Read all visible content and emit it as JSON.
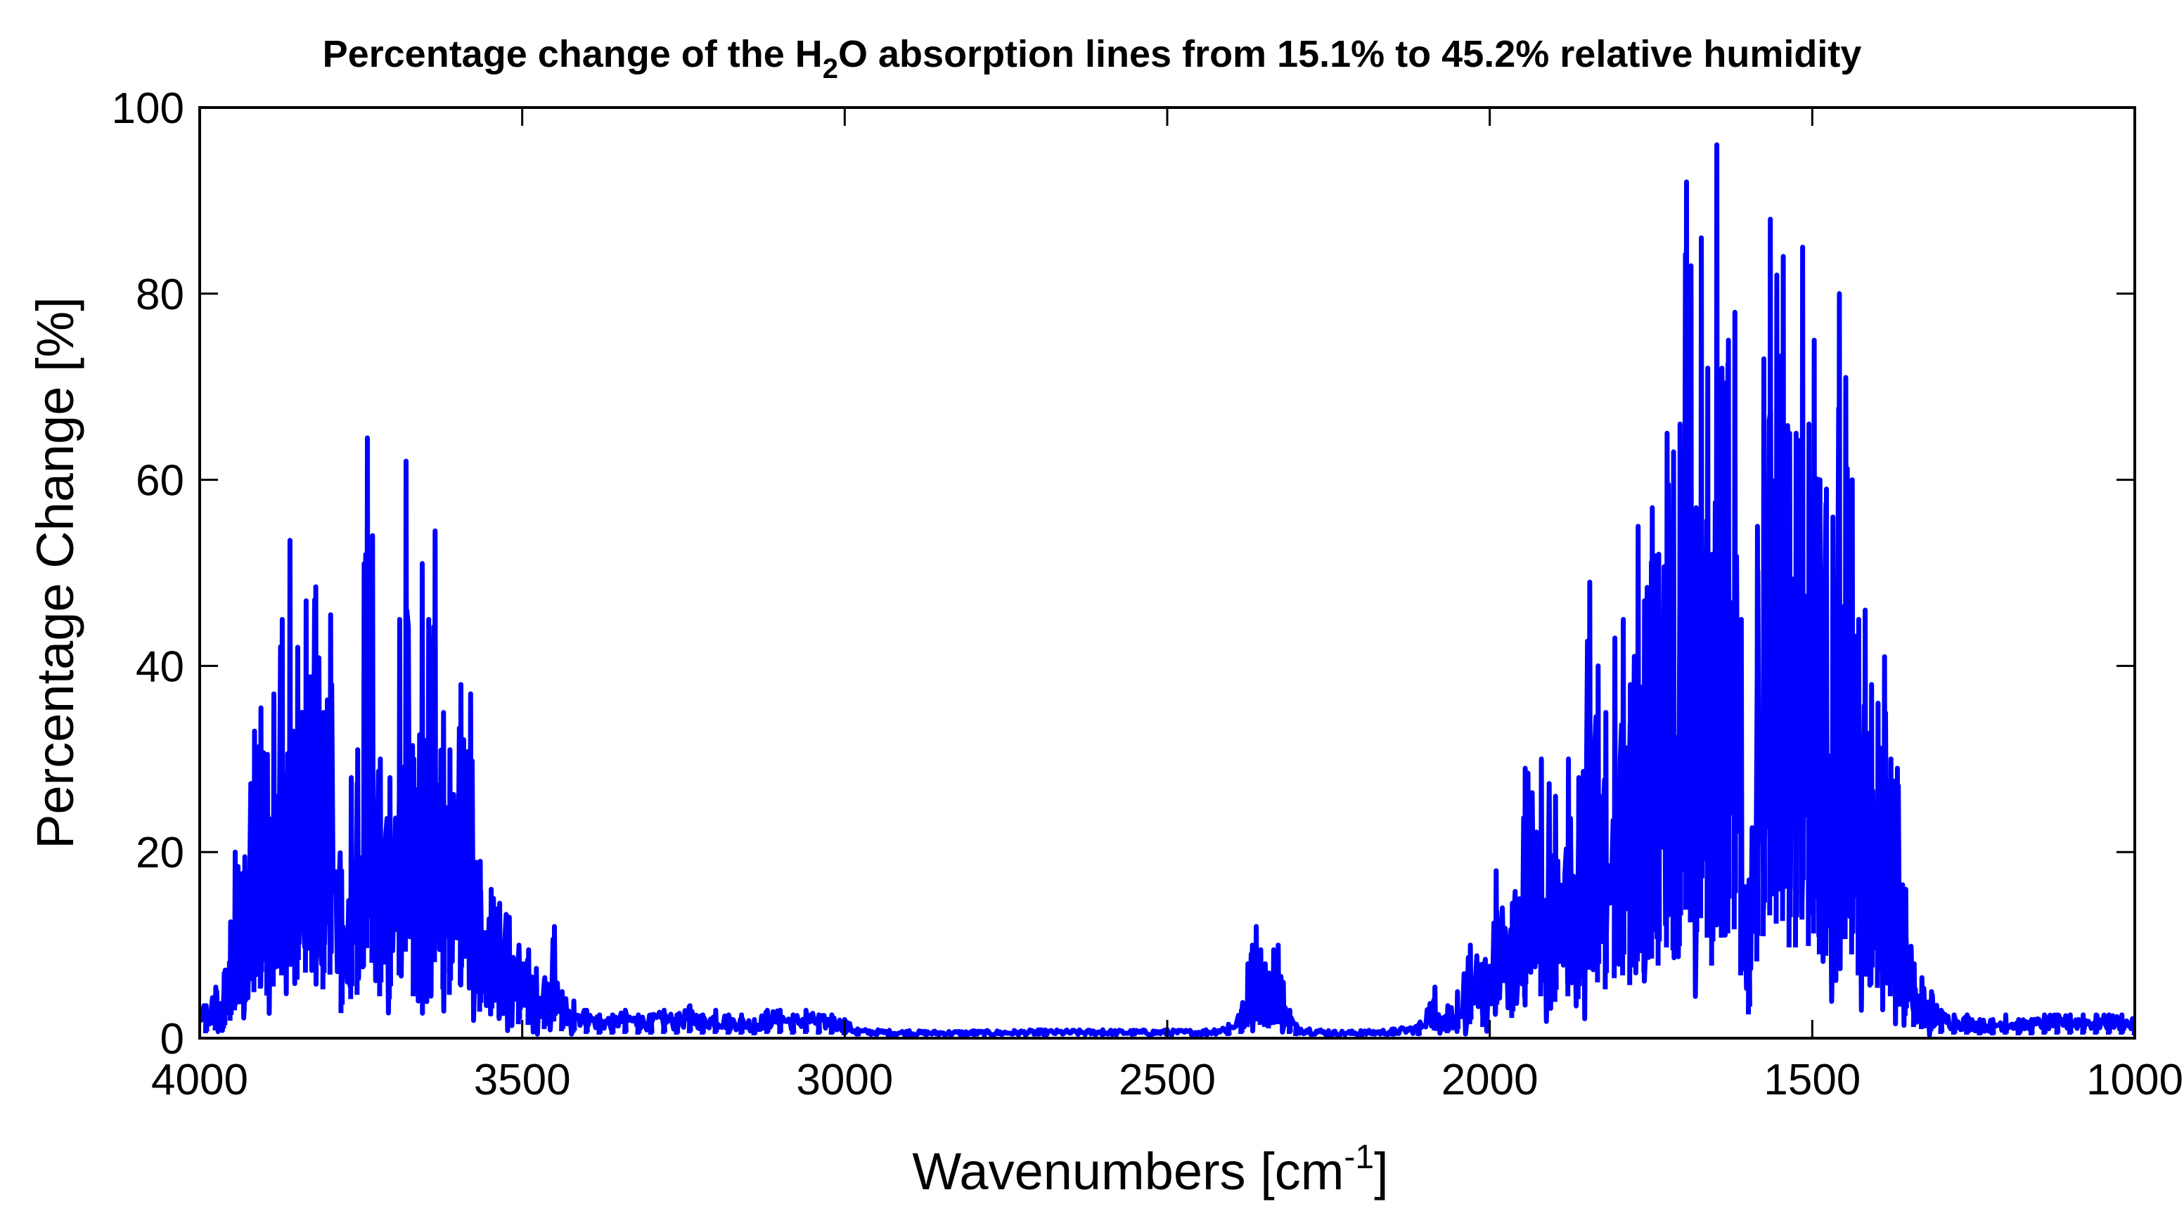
{
  "chart_data": {
    "type": "line",
    "title": {
      "before": "Percentage change of the H",
      "subscript": "2",
      "after": "O absorption lines from 15.1% to 45.2% relative humidity"
    },
    "xlabel": {
      "base": "Wavenumbers [cm",
      "superscript": "-1",
      "close": "]"
    },
    "ylabel": "Percentage Change [%]",
    "xlim": [
      4000,
      1000
    ],
    "ylim": [
      0,
      100
    ],
    "x_reversed": true,
    "xticks": [
      4000,
      3500,
      3000,
      2500,
      2000,
      1500,
      1000
    ],
    "yticks": [
      0,
      20,
      40,
      60,
      80,
      100
    ],
    "grid": false,
    "series": [
      {
        "name": "Percentage change",
        "color": "#0000ff",
        "peaks": [
          [
            3990,
            3.5
          ],
          [
            3975,
            5.5
          ],
          [
            3962,
            7.0
          ],
          [
            3952,
            12.5
          ],
          [
            3945,
            20.0
          ],
          [
            3930,
            19.5
          ],
          [
            3915,
            33.0
          ],
          [
            3905,
            35.5
          ],
          [
            3895,
            30.5
          ],
          [
            3885,
            37.0
          ],
          [
            3872,
            45.0
          ],
          [
            3860,
            53.5
          ],
          [
            3848,
            42.0
          ],
          [
            3835,
            47.0
          ],
          [
            3820,
            48.5
          ],
          [
            3808,
            35.0
          ],
          [
            3797,
            45.5
          ],
          [
            3780,
            18.0
          ],
          [
            3765,
            28.0
          ],
          [
            3755,
            31.0
          ],
          [
            3745,
            51.0
          ],
          [
            3740,
            64.5
          ],
          [
            3732,
            54.0
          ],
          [
            3720,
            30.0
          ],
          [
            3705,
            28.0
          ],
          [
            3690,
            45.0
          ],
          [
            3680,
            62.0
          ],
          [
            3668,
            30.0
          ],
          [
            3655,
            51.0
          ],
          [
            3645,
            45.0
          ],
          [
            3635,
            54.5
          ],
          [
            3622,
            35.0
          ],
          [
            3612,
            31.0
          ],
          [
            3595,
            38.0
          ],
          [
            3580,
            37.0
          ],
          [
            3565,
            19.0
          ],
          [
            3548,
            16.0
          ],
          [
            3535,
            14.5
          ],
          [
            3520,
            13.0
          ],
          [
            3505,
            10.0
          ],
          [
            3490,
            9.5
          ],
          [
            3478,
            7.5
          ],
          [
            3465,
            6.5
          ],
          [
            3450,
            12.0
          ],
          [
            3438,
            5.0
          ],
          [
            3420,
            4.0
          ],
          [
            3400,
            3.0
          ],
          [
            3380,
            2.5
          ],
          [
            3360,
            2.5
          ],
          [
            3340,
            3.0
          ],
          [
            3320,
            2.5
          ],
          [
            3300,
            2.5
          ],
          [
            3280,
            3.0
          ],
          [
            3260,
            2.5
          ],
          [
            3240,
            3.5
          ],
          [
            3220,
            2.5
          ],
          [
            3200,
            3.0
          ],
          [
            3180,
            2.5
          ],
          [
            3160,
            2.5
          ],
          [
            3140,
            2.0
          ],
          [
            3120,
            3.0
          ],
          [
            3100,
            3.0
          ],
          [
            3080,
            2.5
          ],
          [
            3060,
            3.0
          ],
          [
            3040,
            2.5
          ],
          [
            3020,
            2.5
          ],
          [
            3000,
            2.0
          ],
          [
            2980,
            1.0
          ],
          [
            2900,
            0.8
          ],
          [
            2800,
            0.8
          ],
          [
            2700,
            0.9
          ],
          [
            2600,
            0.9
          ],
          [
            2500,
            0.9
          ],
          [
            2440,
            0.9
          ],
          [
            2405,
            1.5
          ],
          [
            2385,
            3.0
          ],
          [
            2375,
            8.0
          ],
          [
            2368,
            10.0
          ],
          [
            2362,
            12.0
          ],
          [
            2355,
            9.5
          ],
          [
            2348,
            8.0
          ],
          [
            2342,
            7.0
          ],
          [
            2335,
            9.5
          ],
          [
            2328,
            10.0
          ],
          [
            2320,
            6.0
          ],
          [
            2310,
            3.0
          ],
          [
            2300,
            1.5
          ],
          [
            2250,
            0.8
          ],
          [
            2200,
            0.8
          ],
          [
            2150,
            1.0
          ],
          [
            2110,
            1.5
          ],
          [
            2085,
            5.5
          ],
          [
            2065,
            3.5
          ],
          [
            2050,
            5.0
          ],
          [
            2030,
            10.0
          ],
          [
            2010,
            8.0
          ],
          [
            1990,
            18.0
          ],
          [
            1965,
            14.5
          ],
          [
            1945,
            29.0
          ],
          [
            1920,
            30.0
          ],
          [
            1898,
            26.0
          ],
          [
            1878,
            30.0
          ],
          [
            1862,
            28.0
          ],
          [
            1845,
            49.0
          ],
          [
            1832,
            40.0
          ],
          [
            1820,
            35.0
          ],
          [
            1806,
            43.0
          ],
          [
            1793,
            45.0
          ],
          [
            1782,
            38.0
          ],
          [
            1770,
            55.0
          ],
          [
            1760,
            47.0
          ],
          [
            1748,
            57.0
          ],
          [
            1738,
            52.0
          ],
          [
            1725,
            65.0
          ],
          [
            1715,
            63.0
          ],
          [
            1705,
            66.0
          ],
          [
            1695,
            92.0
          ],
          [
            1688,
            83.0
          ],
          [
            1680,
            57.0
          ],
          [
            1672,
            86.0
          ],
          [
            1662,
            72.0
          ],
          [
            1655,
            52.0
          ],
          [
            1648,
            96.0
          ],
          [
            1640,
            72.0
          ],
          [
            1630,
            75.0
          ],
          [
            1620,
            78.0
          ],
          [
            1610,
            45.0
          ],
          [
            1598,
            17.0
          ],
          [
            1585,
            55.0
          ],
          [
            1575,
            73.0
          ],
          [
            1565,
            88.0
          ],
          [
            1555,
            82.0
          ],
          [
            1545,
            84.0
          ],
          [
            1535,
            65.0
          ],
          [
            1525,
            65.0
          ],
          [
            1515,
            85.0
          ],
          [
            1505,
            66.0
          ],
          [
            1497,
            75.0
          ],
          [
            1488,
            60.0
          ],
          [
            1478,
            59.0
          ],
          [
            1468,
            56.0
          ],
          [
            1458,
            80.0
          ],
          [
            1448,
            71.0
          ],
          [
            1438,
            60.0
          ],
          [
            1428,
            45.0
          ],
          [
            1418,
            46.0
          ],
          [
            1408,
            38.0
          ],
          [
            1398,
            36.0
          ],
          [
            1388,
            41.0
          ],
          [
            1378,
            30.0
          ],
          [
            1368,
            29.0
          ],
          [
            1355,
            16.0
          ],
          [
            1342,
            8.0
          ],
          [
            1330,
            6.5
          ],
          [
            1315,
            5.0
          ],
          [
            1300,
            3.0
          ],
          [
            1280,
            2.5
          ],
          [
            1260,
            2.5
          ],
          [
            1240,
            2.0
          ],
          [
            1220,
            2.0
          ],
          [
            1200,
            2.5
          ],
          [
            1180,
            2.0
          ],
          [
            1160,
            2.0
          ],
          [
            1140,
            2.5
          ],
          [
            1120,
            2.5
          ],
          [
            1100,
            2.5
          ],
          [
            1080,
            2.5
          ],
          [
            1060,
            2.5
          ],
          [
            1040,
            2.5
          ],
          [
            1020,
            2.5
          ],
          [
            1000,
            2.0
          ]
        ]
      }
    ]
  }
}
